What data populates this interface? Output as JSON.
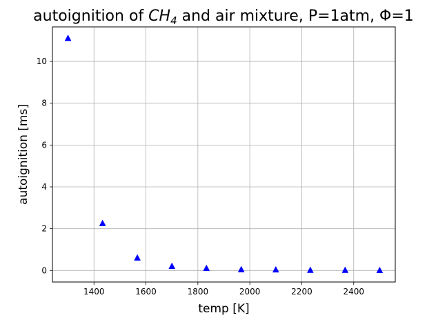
{
  "chart_data": {
    "type": "scatter",
    "title": {
      "prefix": "autoignition of ",
      "species_main": "CH",
      "species_sub": "4",
      "suffix": " and air mixture, P=1atm, Φ=1"
    },
    "xlabel": "temp [K]",
    "ylabel": "autoignition [ms]",
    "xlim": [
      1240,
      2560
    ],
    "ylim": [
      -0.55,
      11.65
    ],
    "xticks": [
      1400,
      1600,
      1800,
      2000,
      2200,
      2400
    ],
    "yticks": [
      0,
      2,
      4,
      6,
      8,
      10
    ],
    "grid": true,
    "marker": "triangle-up",
    "marker_color": "#0000ff",
    "series": [
      {
        "x": [
          1300,
          1433,
          1567,
          1700,
          1833,
          1967,
          2100,
          2233,
          2367,
          2500
        ],
        "y": [
          11.1,
          2.25,
          0.6,
          0.2,
          0.1,
          0.04,
          0.03,
          0.01,
          0.01,
          0.0
        ]
      }
    ]
  }
}
